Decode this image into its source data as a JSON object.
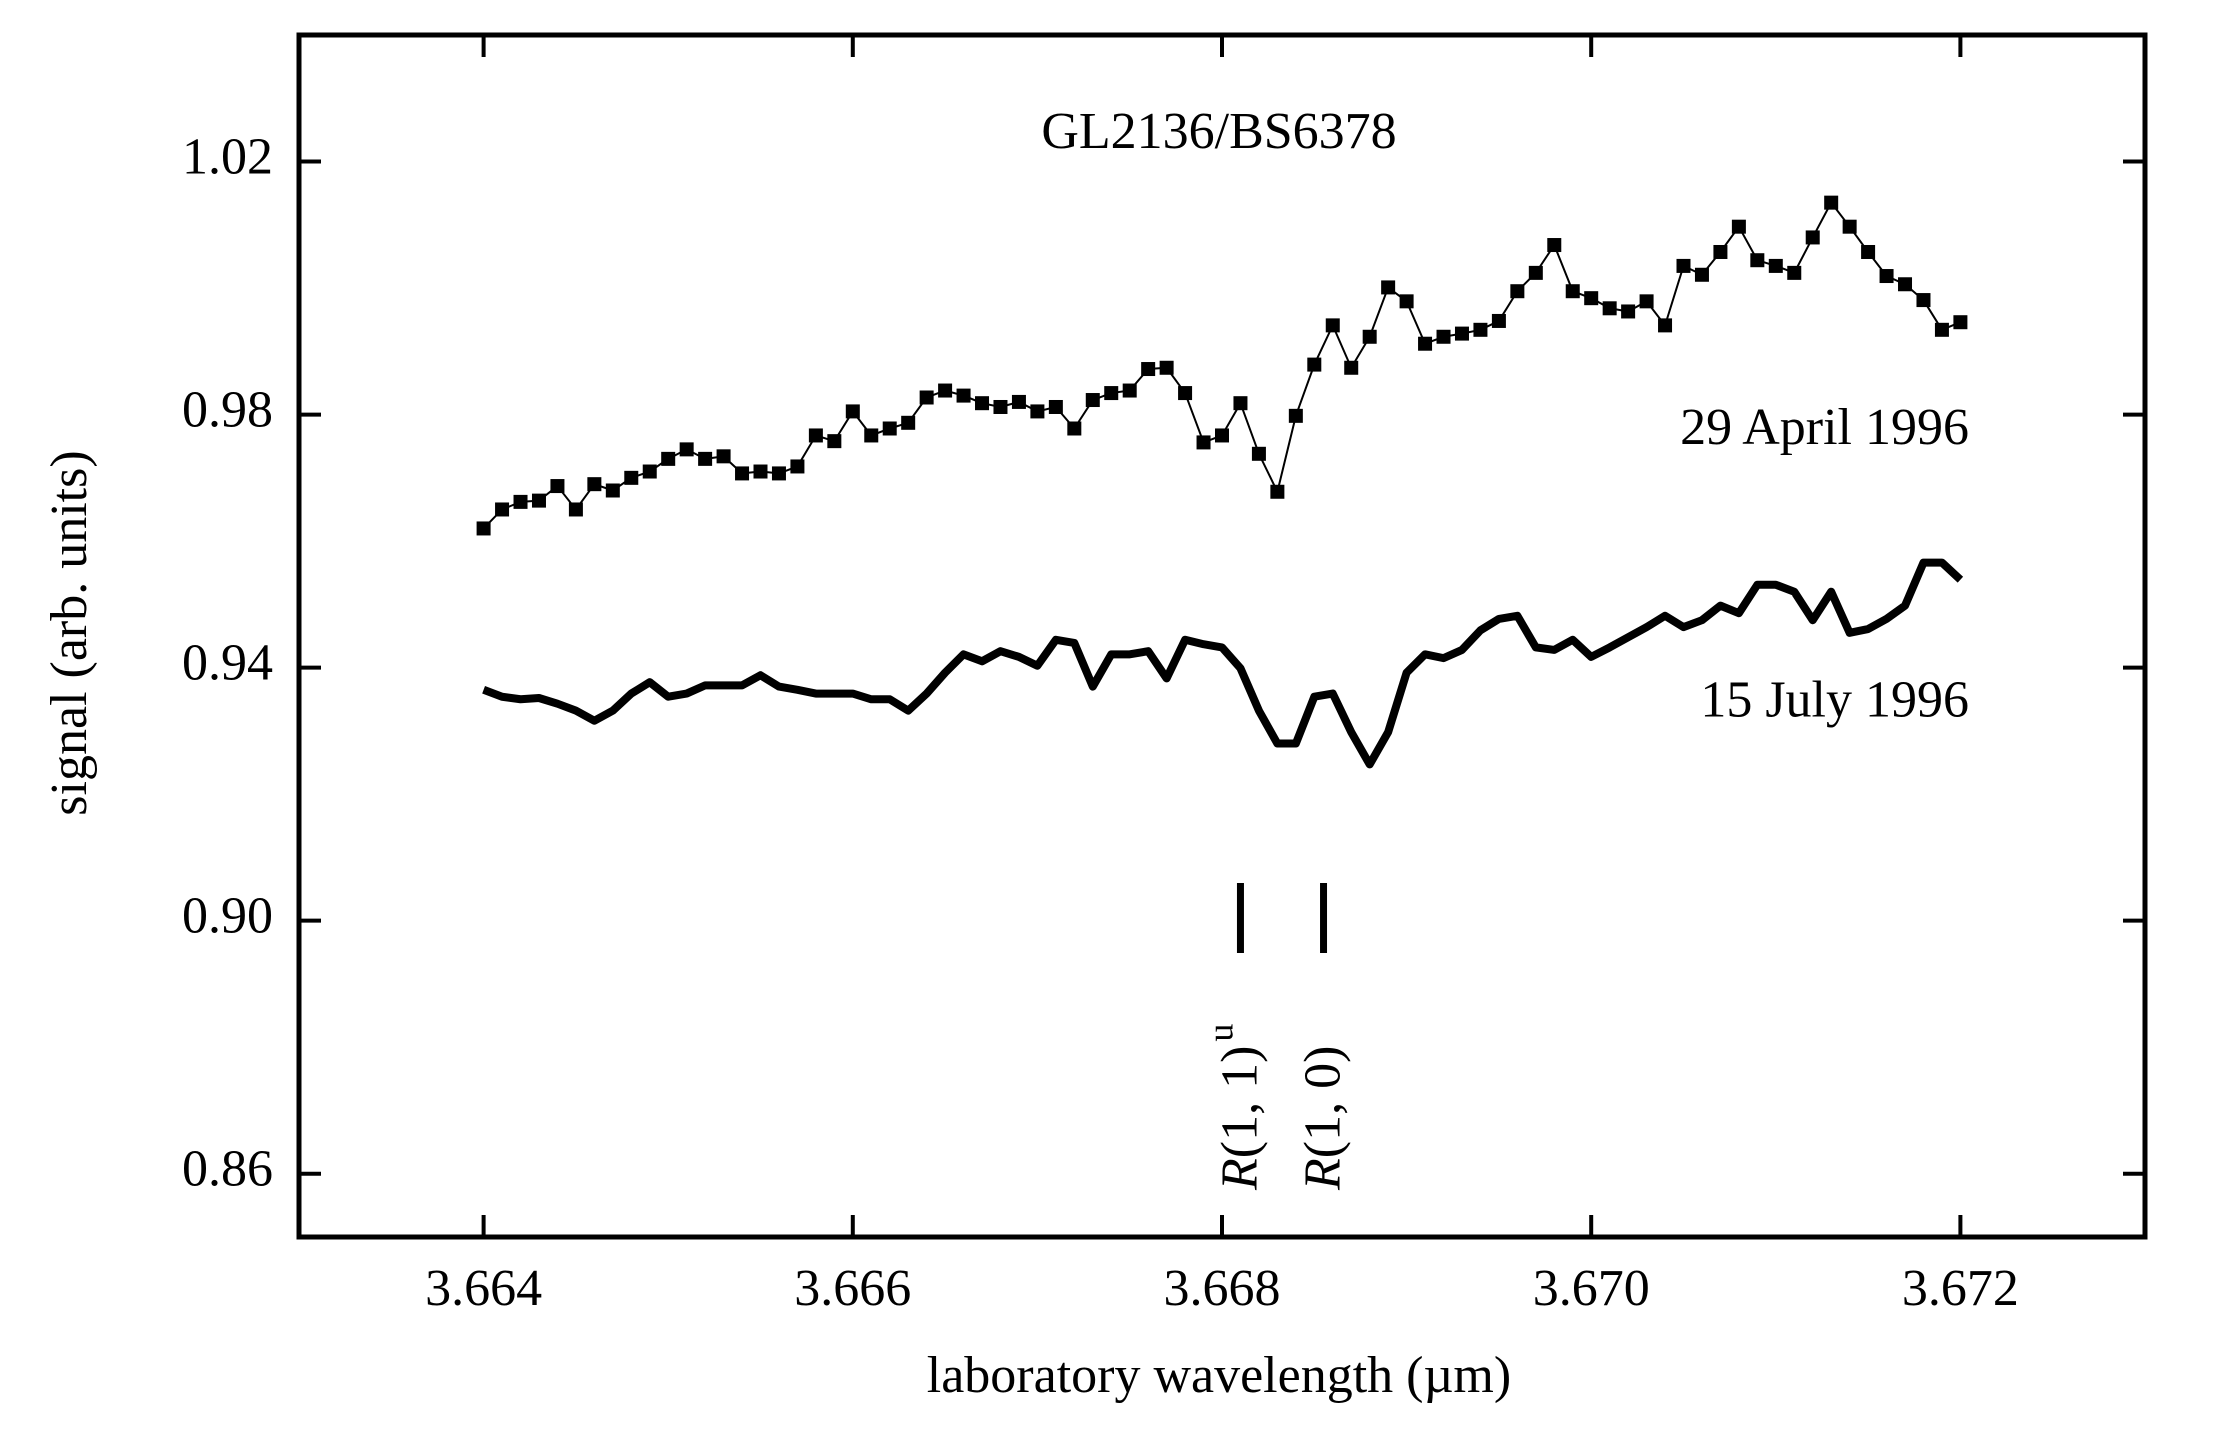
{
  "chart_data": {
    "type": "line",
    "title": "GL2136/BS6378",
    "x_label": "laboratory wavelength (µm)",
    "y_label": "signal (arb. units)",
    "xlim": [
      3.663,
      3.673
    ],
    "ylim": [
      0.85,
      1.04
    ],
    "xticks": [
      3.664,
      3.666,
      3.668,
      {
        "value": 3.67,
        "label": "3.670"
      },
      3.672
    ],
    "yticks": [
      0.86,
      {
        "value": 0.9,
        "label": "0.90"
      },
      0.94,
      0.98,
      1.02
    ],
    "grid": false,
    "x": [
      3.664,
      3.6641,
      3.6642,
      3.6643,
      3.6644,
      3.6645,
      3.6646,
      3.6647,
      3.6648,
      3.6649,
      3.665,
      3.6651,
      3.6652,
      3.6653,
      3.6654,
      3.6655,
      3.6656,
      3.6657,
      3.6658,
      3.6659,
      3.666,
      3.6661,
      3.6662,
      3.6663,
      3.6664,
      3.6665,
      3.6666,
      3.6667,
      3.6668,
      3.6669,
      3.667,
      3.6671,
      3.6672,
      3.6673,
      3.6674,
      3.6675,
      3.6676,
      3.6677,
      3.6678,
      3.6679,
      3.668,
      3.6681,
      3.6682,
      3.6683,
      3.6684,
      3.6685,
      3.6686,
      3.6687,
      3.6688,
      3.6689,
      3.669,
      3.6691,
      3.6692,
      3.6693,
      3.6694,
      3.6695,
      3.6696,
      3.6697,
      3.6698,
      3.6699,
      3.67,
      3.6701,
      3.6702,
      3.6703,
      3.6704,
      3.6705,
      3.6706,
      3.6707,
      3.6708,
      3.6709,
      3.671,
      3.6711,
      3.6712,
      3.6713,
      3.6714,
      3.6715,
      3.6716,
      3.6717,
      3.6718,
      3.6719,
      3.672
    ],
    "series": [
      {
        "name": "29 April 1996",
        "color": "#000000",
        "marker": "square",
        "linewidth": 2,
        "values": [
          0.962,
          0.965,
          0.9662,
          0.9664,
          0.9687,
          0.965,
          0.969,
          0.968,
          0.97,
          0.971,
          0.973,
          0.9745,
          0.973,
          0.9734,
          0.9707,
          0.971,
          0.9707,
          0.9718,
          0.9767,
          0.9758,
          0.9805,
          0.9767,
          0.9778,
          0.9787,
          0.9827,
          0.9838,
          0.983,
          0.9818,
          0.9812,
          0.982,
          0.9805,
          0.9812,
          0.9778,
          0.9823,
          0.9834,
          0.9838,
          0.9872,
          0.9874,
          0.9834,
          0.9756,
          0.9767,
          0.9818,
          0.9738,
          0.9678,
          0.9798,
          0.9879,
          0.9941,
          0.9874,
          0.9923,
          1.0001,
          0.9979,
          0.9912,
          0.9923,
          0.9928,
          0.9934,
          0.9948,
          0.9995,
          1.0024,
          1.0068,
          0.9995,
          0.9984,
          0.9968,
          0.9963,
          0.9979,
          0.9941,
          1.0035,
          1.0021,
          1.0057,
          1.0097,
          1.0044,
          1.0035,
          1.0024,
          1.008,
          1.0135,
          1.0097,
          1.0057,
          1.0019,
          1.0006,
          0.9981,
          0.9934,
          0.9946
        ]
      },
      {
        "name": "15 July 1996",
        "color": "#000000",
        "marker": "none",
        "linewidth": 8,
        "values": [
          0.9365,
          0.9354,
          0.935,
          0.9352,
          0.9343,
          0.9332,
          0.9316,
          0.9332,
          0.9359,
          0.9377,
          0.9354,
          0.9359,
          0.9372,
          0.9372,
          0.9372,
          0.9388,
          0.937,
          0.9365,
          0.9359,
          0.9359,
          0.9359,
          0.935,
          0.935,
          0.9332,
          0.9359,
          0.9392,
          0.9421,
          0.941,
          0.9426,
          0.9417,
          0.9403,
          0.9444,
          0.9439,
          0.937,
          0.9421,
          0.9421,
          0.9426,
          0.9383,
          0.9444,
          0.9437,
          0.9432,
          0.9399,
          0.9332,
          0.928,
          0.928,
          0.9354,
          0.9359,
          0.9298,
          0.9247,
          0.9298,
          0.9392,
          0.9421,
          0.9415,
          0.9428,
          0.9459,
          0.9477,
          0.9482,
          0.9432,
          0.9428,
          0.9444,
          0.9417,
          0.9432,
          0.9448,
          0.9464,
          0.9482,
          0.9464,
          0.9475,
          0.9498,
          0.9486,
          0.9531,
          0.9531,
          0.952,
          0.9475,
          0.952,
          0.9455,
          0.9461,
          0.9477,
          0.9498,
          0.9566,
          0.9566,
          0.9539
        ]
      }
    ],
    "annotations": [
      {
        "text": "R(1, 1)",
        "sup": "u",
        "x": 3.6681
      },
      {
        "text": "R(1, 0)",
        "x": 3.66855
      }
    ]
  }
}
